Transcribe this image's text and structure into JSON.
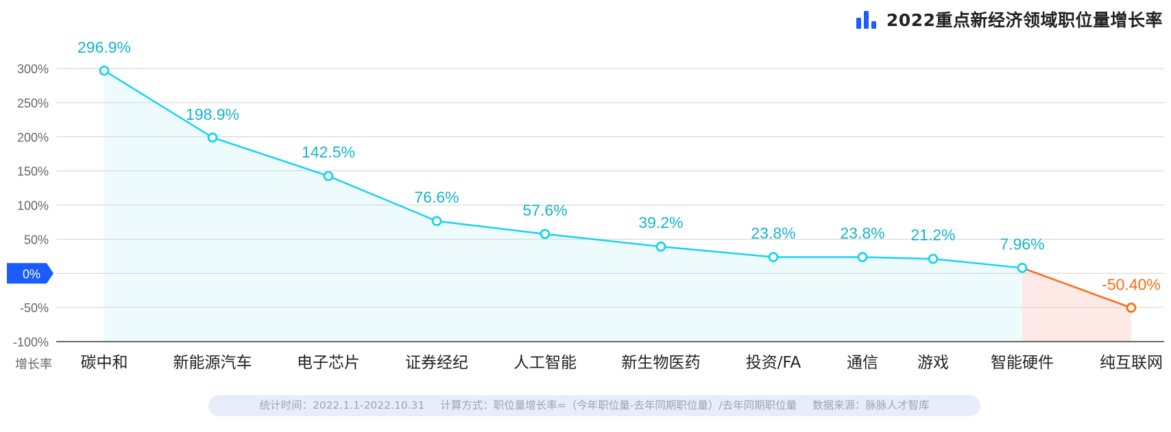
{
  "title": "2022重点新经济领域职位量增长率",
  "xlabel": "增长率",
  "footnote": {
    "period": "统计时间：2022.1.1-2022.10.31",
    "method": "计算方式：职位量增长率=（今年职位量-去年同期职位量）/去年同期职位量",
    "source": "数据来源：脉脉人才智库"
  },
  "colors": {
    "positive_line": "#16d3ee",
    "positive_fill": "#eefbfc",
    "negative_line": "#ff6a13",
    "negative_fill": "#fdeae6",
    "positive_label": "#15b5cc",
    "negative_label": "#ff6a13",
    "zero_badge": "#1a5cff",
    "grid": "#d0d0d0",
    "axis_text": "#666666",
    "category_text": "#222222"
  },
  "chart_data": {
    "type": "line",
    "title": "2022重点新经济领域职位量增长率",
    "xlabel": "增长率",
    "ylabel": "",
    "ylim": [
      -100,
      300
    ],
    "yticks": [
      300,
      250,
      200,
      150,
      100,
      50,
      0,
      -50,
      -100
    ],
    "ytick_labels": [
      "300%",
      "250%",
      "200%",
      "150%",
      "100%",
      "50%",
      "0%",
      "-50%",
      "-100%"
    ],
    "grid": true,
    "categories": [
      "碳中和",
      "新能源汽车",
      "电子芯片",
      "证券经纪",
      "人工智能",
      "新生物医药",
      "投资/FA",
      "通信",
      "游戏",
      "智能硬件",
      "纯互联网"
    ],
    "values": [
      296.9,
      198.9,
      142.5,
      76.6,
      57.6,
      39.2,
      23.8,
      23.8,
      21.2,
      7.96,
      -50.4
    ],
    "labels": [
      "296.9%",
      "198.9%",
      "142.5%",
      "76.6%",
      "57.6%",
      "39.2%",
      "23.8%",
      "23.8%",
      "21.2%",
      "7.96%",
      "-50.40%"
    ]
  }
}
